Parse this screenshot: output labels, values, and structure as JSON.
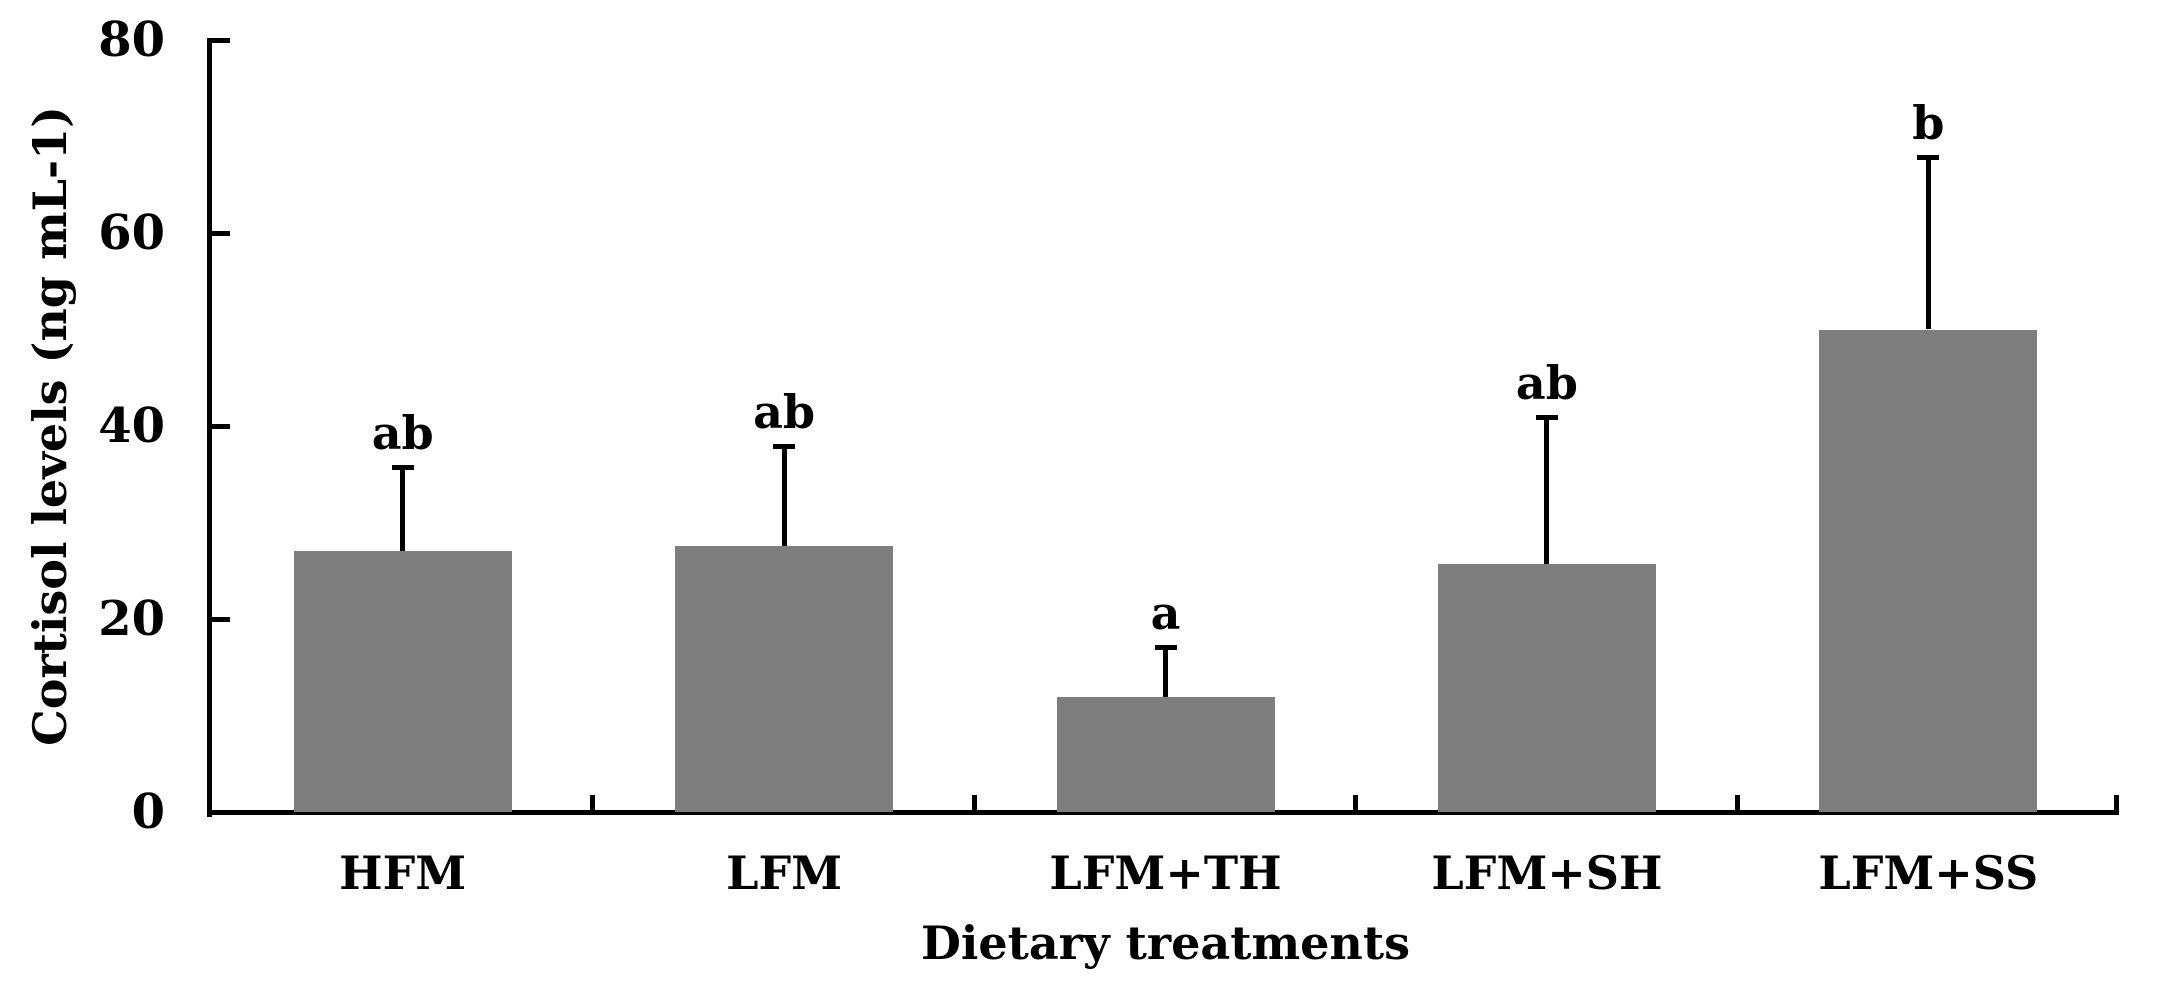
{
  "chart_data": {
    "type": "bar",
    "title": "",
    "xlabel": "Dietary treatments",
    "ylabel": "Cortisol levels (ng mL-1)",
    "categories": [
      "HFM",
      "LFM",
      "LFM+TH",
      "LFM+SH",
      "LFM+SS"
    ],
    "values": [
      27.0,
      27.6,
      11.9,
      25.7,
      50.0
    ],
    "errors_upper": [
      8.8,
      10.3,
      5.2,
      15.2,
      17.9
    ],
    "sig_letters": [
      "ab",
      "ab",
      "a",
      "ab",
      "b"
    ],
    "ylim": [
      0,
      80
    ],
    "yticks": [
      0,
      20,
      40,
      60,
      80
    ],
    "grid": false,
    "legend": false,
    "bar_color": "#7e7e7e",
    "axis_color": "#000000",
    "error_bar_color": "#000000",
    "text_color": "#000000"
  }
}
